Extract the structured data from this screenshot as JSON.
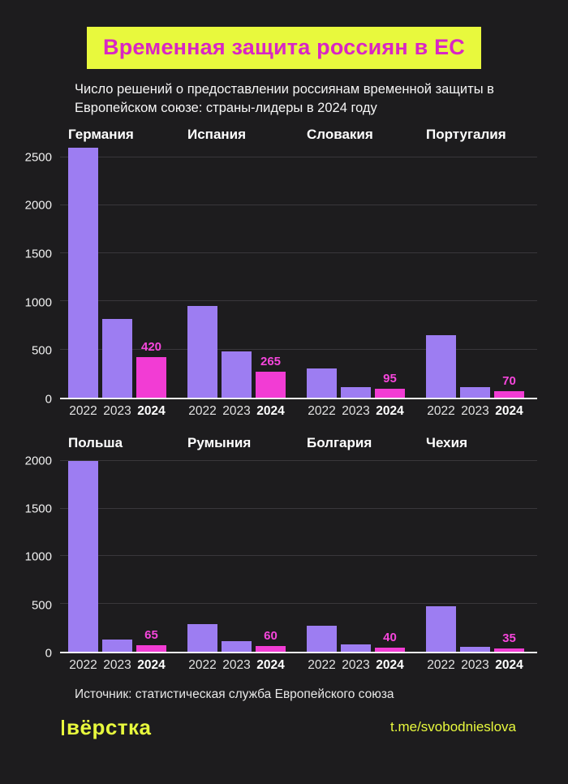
{
  "header": {
    "title": "Временная защита россиян в ЕС",
    "subtitle": "Число решений о предоставлении россиянам временной защиты в Европейском союзе: страны-лидеры в 2024 году"
  },
  "footer": {
    "source": "Источник: статистическая служба Европейского союза",
    "logo": "вёрстка",
    "link": "t.me/svobodnieslova"
  },
  "colors": {
    "background": "#1d1c1e",
    "accent_yellow": "#e8f93d",
    "title_text": "#d926c4",
    "bar_purple": "#9d7df2",
    "bar_magenta": "#f23cd4",
    "gridline": "#39373b"
  },
  "chart_data": {
    "type": "bar",
    "categories": [
      "2022",
      "2023",
      "2024"
    ],
    "bar_colors": [
      "#9d7df2",
      "#9d7df2",
      "#f23cd4"
    ],
    "grid": true,
    "legend": "none",
    "rows": [
      {
        "ylim": [
          0,
          2600
        ],
        "yticks": [
          0,
          500,
          1000,
          1500,
          2000,
          2500
        ],
        "charts": [
          {
            "title": "Германия",
            "values": [
              2600,
              820,
              420
            ],
            "label_2024": "420"
          },
          {
            "title": "Испания",
            "values": [
              950,
              480,
              265
            ],
            "label_2024": "265"
          },
          {
            "title": "Словакия",
            "values": [
              300,
              105,
              95
            ],
            "label_2024": "95"
          },
          {
            "title": "Португалия",
            "values": [
              650,
              110,
              70
            ],
            "label_2024": "70"
          }
        ]
      },
      {
        "ylim": [
          0,
          2050
        ],
        "yticks": [
          0,
          500,
          1000,
          1500,
          2000
        ],
        "charts": [
          {
            "title": "Польша",
            "values": [
              2000,
              125,
              65
            ],
            "label_2024": "65"
          },
          {
            "title": "Румыния",
            "values": [
              290,
              110,
              60
            ],
            "label_2024": "60"
          },
          {
            "title": "Болгария",
            "values": [
              270,
              75,
              40
            ],
            "label_2024": "40"
          },
          {
            "title": "Чехия",
            "values": [
              475,
              50,
              35
            ],
            "label_2024": "35"
          }
        ]
      }
    ]
  }
}
